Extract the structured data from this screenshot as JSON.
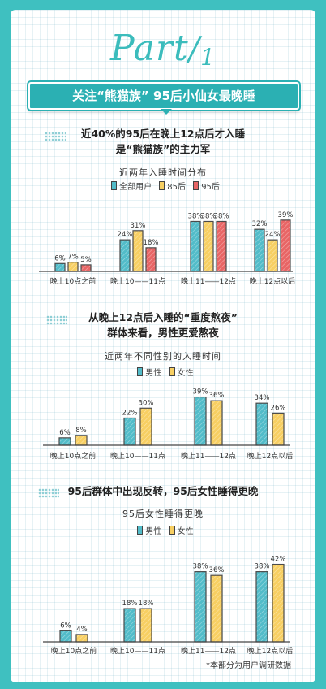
{
  "header": {
    "part_word": "Part",
    "part_slash": "/",
    "part_num": "1",
    "banner": "关注“熊猫族” 95后小仙女最晚睡"
  },
  "colors": {
    "teal": "#52bcc9",
    "yellow": "#f7cf62",
    "red": "#e86565",
    "stroke": "#4a4a4a"
  },
  "sections": [
    {
      "heading_lines": [
        "近40%的95后在晚上12点后才入睡",
        "是“熊猫族”的主力军"
      ],
      "chart_title": "近两年入睡时间分布",
      "legend": [
        {
          "label": "全部用户",
          "color": "#52bcc9"
        },
        {
          "label": "85后",
          "color": "#f7cf62"
        },
        {
          "label": "95后",
          "color": "#e86565"
        }
      ]
    },
    {
      "heading_lines": [
        "从晚上12点后入睡的“重度熬夜”",
        "群体来看，男性更爱熬夜"
      ],
      "chart_title": "近两年不同性别的入睡时间",
      "legend": [
        {
          "label": "男性",
          "color": "#52bcc9"
        },
        {
          "label": "女性",
          "color": "#f7cf62"
        }
      ]
    },
    {
      "heading_lines": [
        "95后群体中出现反转，95后女性睡得更晚"
      ],
      "chart_title": "95后女性睡得更晚",
      "legend": [
        {
          "label": "男性",
          "color": "#52bcc9"
        },
        {
          "label": "女性",
          "color": "#f7cf62"
        }
      ]
    }
  ],
  "chart_data": [
    {
      "type": "bar",
      "title": "近两年入睡时间分布",
      "categories": [
        "晚上10点之前",
        "晚上10——11点",
        "晚上11——12点",
        "晚上12点以后"
      ],
      "series": [
        {
          "name": "全部用户",
          "values": [
            6,
            24,
            38,
            32
          ],
          "labels": [
            "6%",
            "24%",
            "38%",
            "32%"
          ]
        },
        {
          "name": "85后",
          "values": [
            7,
            31,
            38,
            24
          ],
          "labels": [
            "7%",
            "31%",
            "38%",
            "24%"
          ]
        },
        {
          "name": "95后",
          "values": [
            5,
            18,
            38,
            39
          ],
          "labels": [
            "5%",
            "18%",
            "38%",
            "39%"
          ]
        }
      ],
      "ylim": [
        0,
        42
      ],
      "legend_position": "top-center",
      "grid": false
    },
    {
      "type": "bar",
      "title": "近两年不同性别的入睡时间",
      "categories": [
        "晚上10点之前",
        "晚上10——11点",
        "晚上11——12点",
        "晚上12点以后"
      ],
      "series": [
        {
          "name": "男性",
          "values": [
            6,
            22,
            39,
            34
          ],
          "labels": [
            "6%",
            "22%",
            "39%",
            "34%"
          ]
        },
        {
          "name": "女性",
          "values": [
            8,
            30,
            36,
            26
          ],
          "labels": [
            "8%",
            "30%",
            "36%",
            "26%"
          ]
        }
      ],
      "ylim": [
        0,
        42
      ],
      "legend_position": "top-center",
      "grid": false
    },
    {
      "type": "bar",
      "title": "95后女性睡得更晚",
      "categories": [
        "晚上10点之前",
        "晚上10——11点",
        "晚上11——12点",
        "晚上12点以后"
      ],
      "series": [
        {
          "name": "男性",
          "values": [
            6,
            18,
            38,
            38
          ],
          "labels": [
            "6%",
            "18%",
            "38%",
            "38%"
          ]
        },
        {
          "name": "女性",
          "values": [
            4,
            18,
            36,
            42
          ],
          "labels": [
            "4%",
            "18%",
            "36%",
            "42%"
          ]
        }
      ],
      "ylim": [
        0,
        44
      ],
      "legend_position": "top-center",
      "grid": false
    }
  ],
  "footnote": "*本部分为用户调研数据"
}
